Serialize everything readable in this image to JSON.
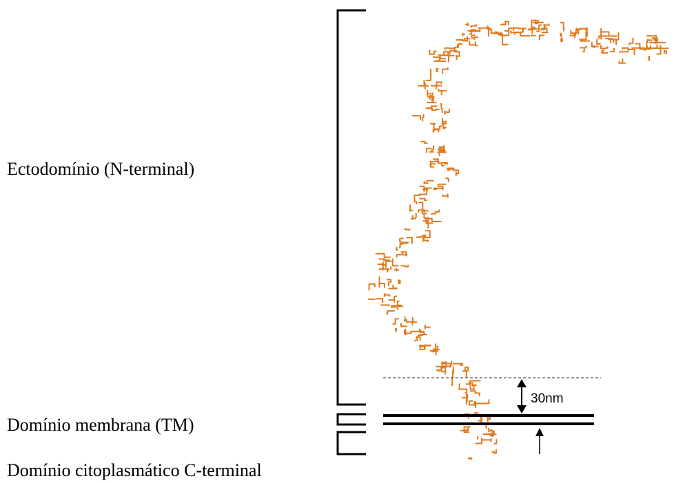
{
  "labels": {
    "ectodomain": "Ectodomínio (N-terminal)",
    "transmembrane": "Domínio membrana (TM)",
    "cytoplasmic": "Domínio citoplasmático C-terminal"
  },
  "scale_label": "30nm"
}
